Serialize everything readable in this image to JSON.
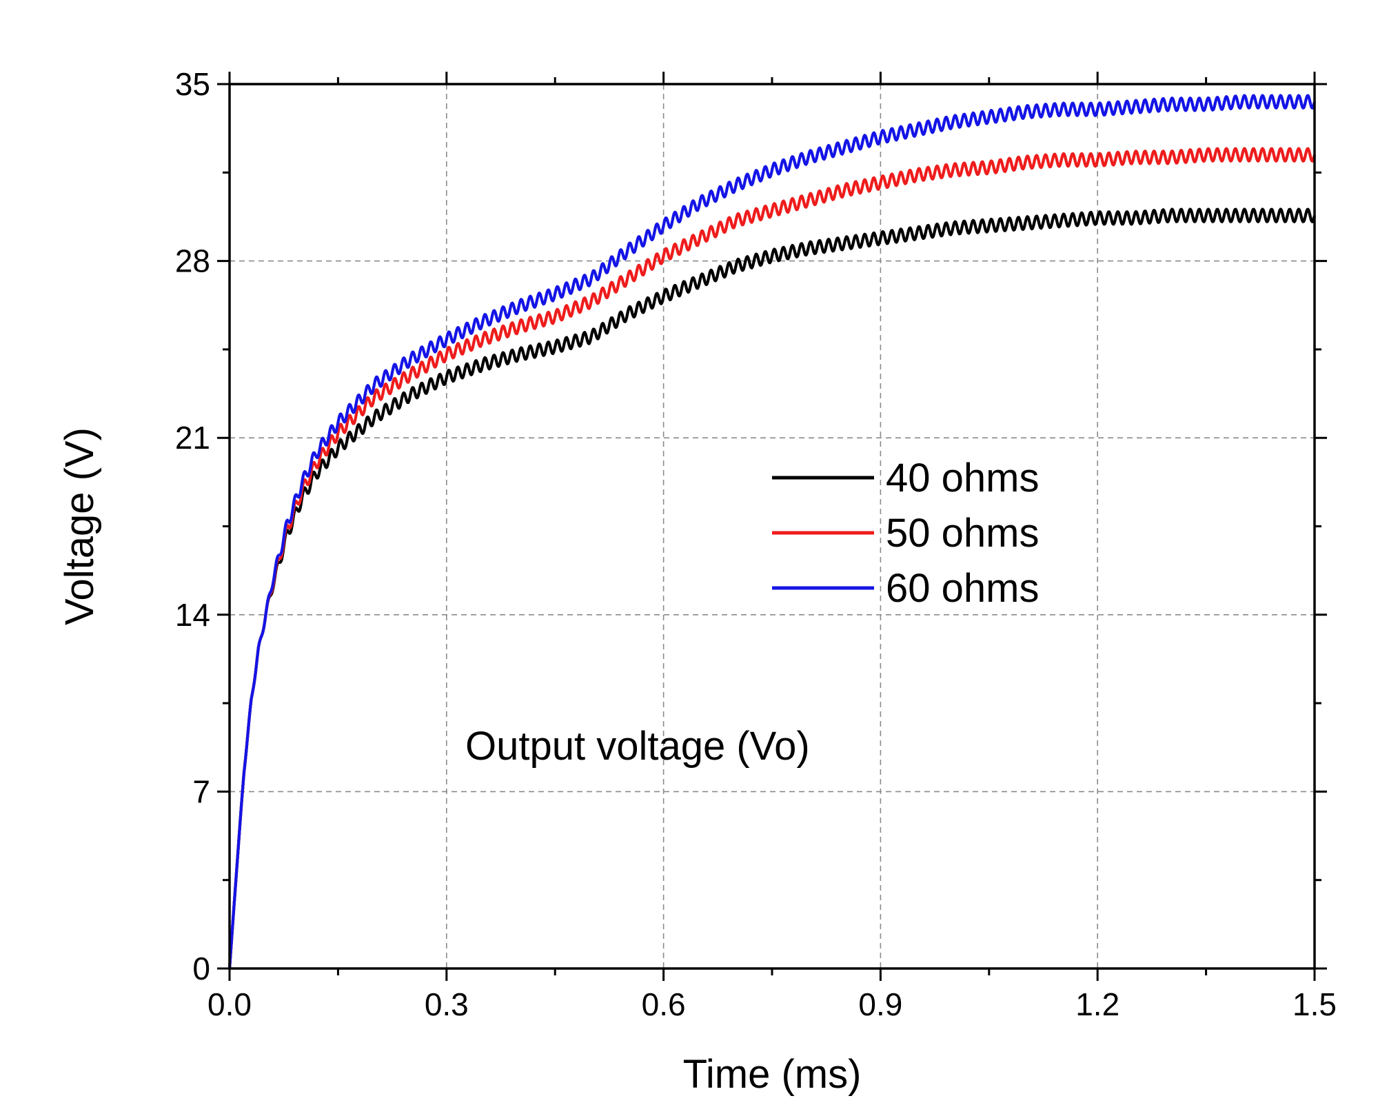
{
  "chart_data": {
    "type": "line",
    "xlabel": "Time (ms)",
    "ylabel": "Voltage (V)",
    "xlim": [
      0,
      1.5
    ],
    "ylim": [
      0,
      35
    ],
    "xticks": [
      "0.0",
      "0.3",
      "0.6",
      "0.9",
      "1.2",
      "1.5"
    ],
    "yticks": [
      "0",
      "7",
      "14",
      "21",
      "28",
      "35"
    ],
    "xtick_values": [
      0,
      0.3,
      0.6,
      0.9,
      1.2,
      1.5
    ],
    "ytick_values": [
      0,
      7,
      14,
      21,
      28,
      35
    ],
    "grid": true,
    "legend_position": "center-right",
    "annotation": "Output voltage (Vo)",
    "ripple_amplitude": 0.25,
    "ripple_period_ms": 0.0125,
    "series": [
      {
        "name": "40 ohms",
        "color": "#000000",
        "x": [
          0,
          0.01,
          0.02,
          0.03,
          0.04,
          0.05,
          0.06,
          0.08,
          0.1,
          0.12,
          0.15,
          0.2,
          0.25,
          0.3,
          0.35,
          0.4,
          0.45,
          0.5,
          0.55,
          0.6,
          0.65,
          0.7,
          0.75,
          0.8,
          0.85,
          0.9,
          0.95,
          1.0,
          1.05,
          1.1,
          1.15,
          1.2,
          1.25,
          1.3,
          1.35,
          1.4,
          1.45,
          1.5
        ],
        "y": [
          0,
          4.0,
          7.8,
          10.6,
          12.6,
          14.0,
          15.2,
          17.2,
          18.6,
          19.6,
          20.6,
          21.8,
          22.7,
          23.4,
          23.9,
          24.3,
          24.6,
          25.0,
          25.9,
          26.6,
          27.2,
          27.8,
          28.2,
          28.5,
          28.7,
          28.9,
          29.1,
          29.3,
          29.4,
          29.5,
          29.6,
          29.7,
          29.7,
          29.8,
          29.8,
          29.8,
          29.8,
          29.8
        ]
      },
      {
        "name": "50 ohms",
        "color": "#ee1c1c",
        "x": [
          0,
          0.01,
          0.02,
          0.03,
          0.04,
          0.05,
          0.06,
          0.08,
          0.1,
          0.12,
          0.15,
          0.2,
          0.25,
          0.3,
          0.35,
          0.4,
          0.45,
          0.5,
          0.55,
          0.6,
          0.65,
          0.7,
          0.75,
          0.8,
          0.85,
          0.9,
          0.95,
          1.0,
          1.05,
          1.1,
          1.15,
          1.2,
          1.25,
          1.3,
          1.35,
          1.4,
          1.45,
          1.5
        ],
        "y": [
          0,
          4.0,
          7.8,
          10.6,
          12.6,
          14.0,
          15.3,
          17.4,
          18.9,
          20.0,
          21.2,
          22.6,
          23.5,
          24.3,
          24.9,
          25.4,
          25.8,
          26.4,
          27.3,
          28.2,
          28.9,
          29.6,
          30.0,
          30.4,
          30.8,
          31.1,
          31.4,
          31.6,
          31.7,
          31.9,
          32.0,
          32.0,
          32.1,
          32.1,
          32.2,
          32.2,
          32.2,
          32.2
        ]
      },
      {
        "name": "60 ohms",
        "color": "#1414e6",
        "x": [
          0,
          0.01,
          0.02,
          0.03,
          0.04,
          0.05,
          0.06,
          0.08,
          0.1,
          0.12,
          0.15,
          0.2,
          0.25,
          0.3,
          0.35,
          0.4,
          0.45,
          0.5,
          0.55,
          0.6,
          0.65,
          0.7,
          0.75,
          0.8,
          0.85,
          0.9,
          0.95,
          1.0,
          1.05,
          1.1,
          1.15,
          1.2,
          1.25,
          1.3,
          1.35,
          1.4,
          1.45,
          1.5
        ],
        "y": [
          0,
          4.0,
          7.8,
          10.6,
          12.6,
          14.0,
          15.4,
          17.6,
          19.2,
          20.4,
          21.6,
          23.1,
          24.1,
          24.9,
          25.6,
          26.2,
          26.7,
          27.3,
          28.4,
          29.4,
          30.3,
          31.0,
          31.6,
          32.1,
          32.5,
          32.9,
          33.2,
          33.5,
          33.7,
          33.9,
          34.0,
          34.0,
          34.1,
          34.2,
          34.2,
          34.3,
          34.3,
          34.3
        ]
      }
    ]
  }
}
